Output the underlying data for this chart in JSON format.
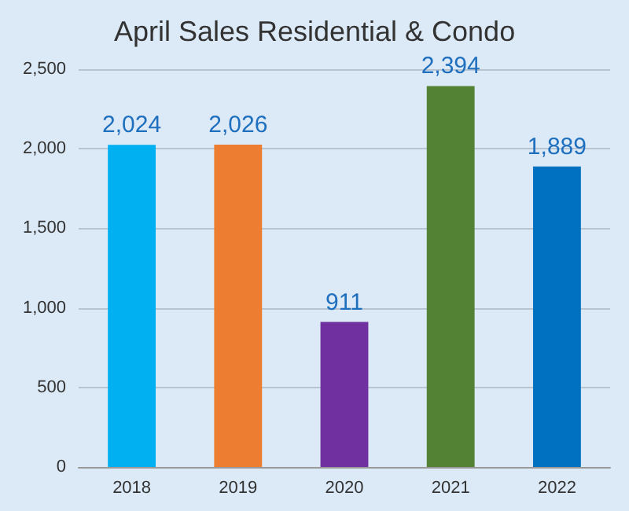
{
  "chart_data": {
    "type": "bar",
    "title": "April Sales Residential & Condo",
    "categories": [
      "2018",
      "2019",
      "2020",
      "2021",
      "2022"
    ],
    "values": [
      2024,
      2026,
      911,
      2394,
      1889
    ],
    "value_labels": [
      "2,024",
      "2,026",
      "911",
      "2,394",
      "1,889"
    ],
    "colors": [
      "#00b0f0",
      "#ed7d31",
      "#7030a0",
      "#548235",
      "#0070c0"
    ],
    "ylim": [
      0,
      2500
    ],
    "yticks": [
      0,
      500,
      {
        "value": 1000,
        "label": "1,000"
      },
      {
        "value": 1500,
        "label": "1,500"
      },
      {
        "value": 2000,
        "label": "2,000"
      },
      {
        "value": 2500,
        "label": "2,500"
      }
    ],
    "grid": "y"
  }
}
